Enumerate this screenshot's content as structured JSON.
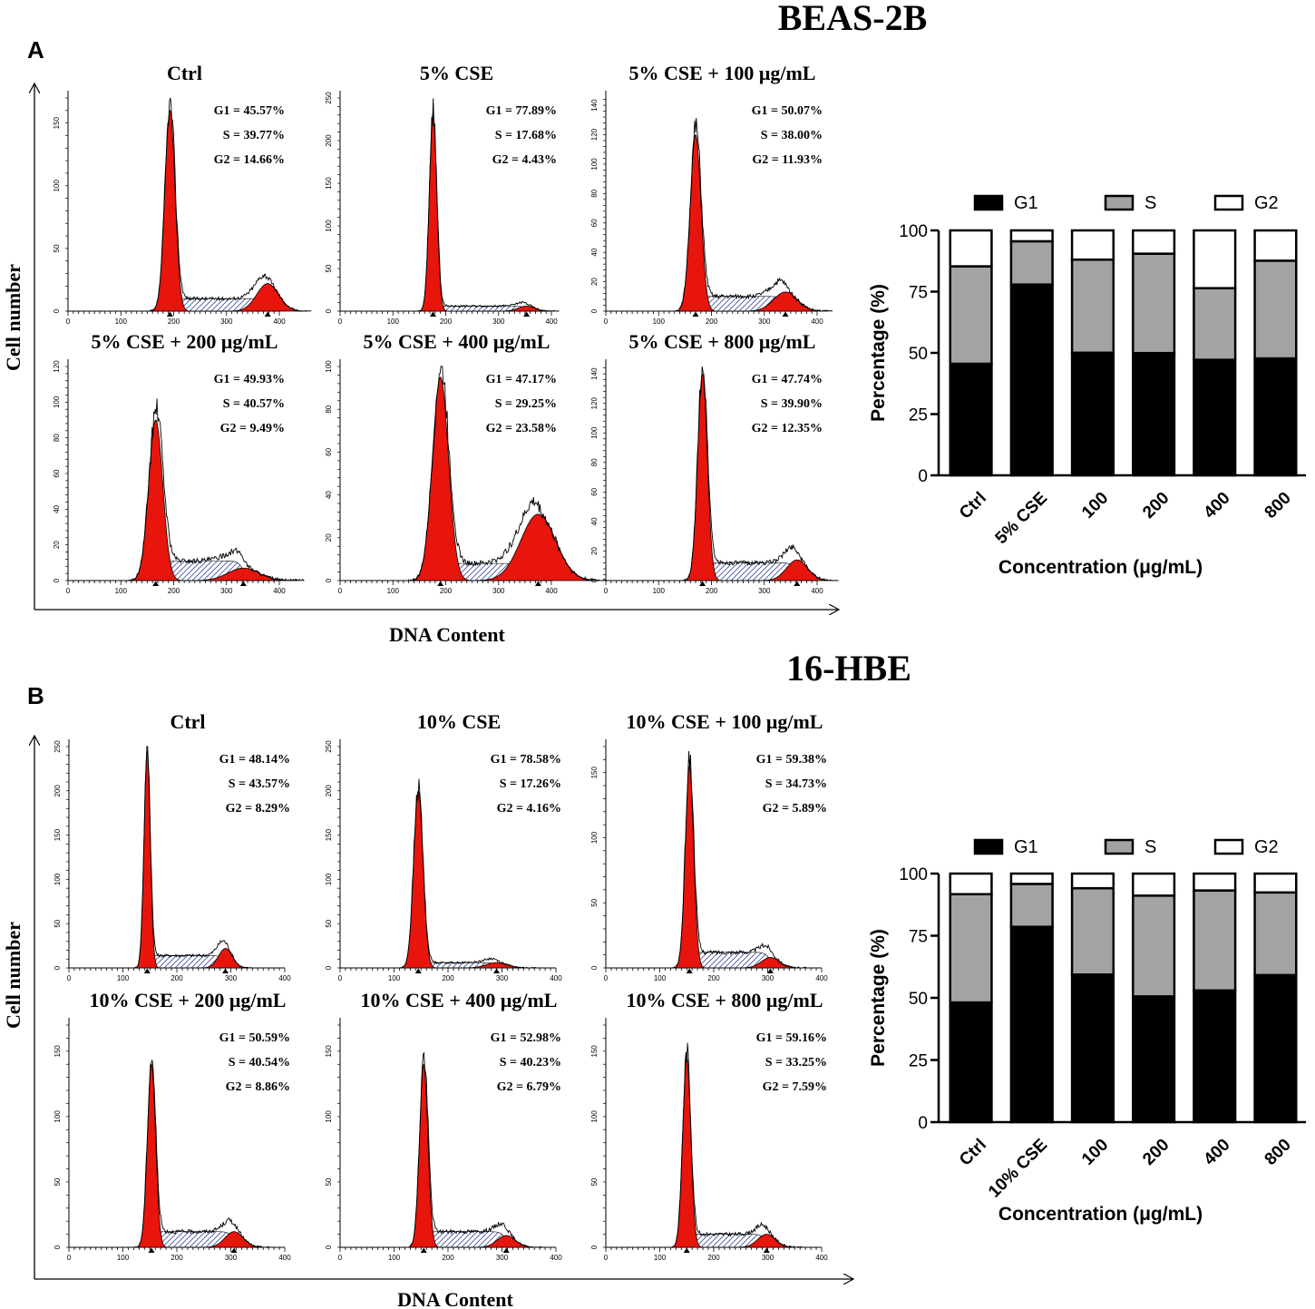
{
  "colors": {
    "peak_fill": "#e8150c",
    "g1": "#000000",
    "s": "#a3a3a6",
    "g2": "#ffffff",
    "axis": "#000000"
  },
  "chart_data": [
    {
      "id": "A",
      "panel_letter": "A",
      "title": "BEAS-2B",
      "histograms": {
        "type": "histogram",
        "ylabel": "Cell number",
        "xlabel": "DNA Content",
        "panels": [
          {
            "title": "Ctrl",
            "g1_label": "G1 = 45.57%",
            "s_label": "S = 39.77%",
            "g2_label": "G2 = 14.66%",
            "xlim": [
              0,
              400
            ],
            "xticks": [
              0,
              100,
              200,
              300,
              400
            ],
            "ylim": [
              0,
              170
            ],
            "yticks": [
              0,
              50,
              100,
              150
            ],
            "g1_peak": 193,
            "g2_peak": 378,
            "g1_height": 160,
            "g2_height": 22,
            "cv": 5,
            "plateau": 10
          },
          {
            "title": "5% CSE",
            "g1_label": "G1 = 77.89%",
            "s_label": "S = 17.68%",
            "g2_label": "G2 = 4.43%",
            "xlim": [
              0,
              400
            ],
            "xticks": [
              0,
              100,
              200,
              300,
              400
            ],
            "ylim": [
              0,
              250
            ],
            "yticks": [
              0,
              50,
              100,
              150,
              200,
              250
            ],
            "g1_peak": 176,
            "g2_peak": 353,
            "g1_height": 232,
            "g2_height": 6,
            "cv": 4,
            "plateau": 6
          },
          {
            "title": "5% CSE + 100 μg/mL",
            "g1_label": "G1 = 50.07%",
            "s_label": "S = 38.00%",
            "g2_label": "G2 = 11.93%",
            "xlim": [
              0,
              400
            ],
            "xticks": [
              0,
              100,
              200,
              300,
              400
            ],
            "ylim": [
              0,
              145
            ],
            "yticks": [
              0,
              20,
              40,
              60,
              80,
              100,
              120,
              140
            ],
            "g1_peak": 170,
            "g2_peak": 340,
            "g1_height": 120,
            "g2_height": 13,
            "cv": 6,
            "plateau": 10
          },
          {
            "title": "5% CSE + 200 μg/mL",
            "g1_label": "G1 = 49.93%",
            "s_label": "S = 40.57%",
            "g2_label": "G2 = 9.49%",
            "xlim": [
              0,
              400
            ],
            "xticks": [
              0,
              100,
              200,
              300,
              400
            ],
            "ylim": [
              0,
              120
            ],
            "yticks": [
              0,
              20,
              40,
              60,
              80,
              100,
              120
            ],
            "g1_peak": 166,
            "g2_peak": 332,
            "g1_height": 90,
            "g2_height": 7,
            "cv": 8,
            "plateau": 11
          },
          {
            "title": "5% CSE + 400 μg/mL",
            "g1_label": "G1 = 47.17%",
            "s_label": "S = 29.25%",
            "g2_label": "G2 = 23.58%",
            "xlim": [
              0,
              400
            ],
            "xticks": [
              0,
              100,
              200,
              300,
              400
            ],
            "ylim": [
              0,
              100
            ],
            "yticks": [
              0,
              20,
              40,
              60,
              80,
              100
            ],
            "g1_peak": 190,
            "g2_peak": 375,
            "g1_height": 95,
            "g2_height": 31,
            "cv": 8,
            "plateau": 8
          },
          {
            "title": "5% CSE + 800 μg/mL",
            "g1_label": "G1 = 47.74%",
            "s_label": "S = 39.90%",
            "g2_label": "G2 = 12.35%",
            "xlim": [
              0,
              400
            ],
            "xticks": [
              0,
              100,
              200,
              300,
              400
            ],
            "ylim": [
              0,
              145
            ],
            "yticks": [
              0,
              20,
              40,
              60,
              80,
              100,
              120,
              140
            ],
            "g1_peak": 183,
            "g2_peak": 362,
            "g1_height": 140,
            "g2_height": 14,
            "cv": 5,
            "plateau": 12
          }
        ]
      },
      "bar": {
        "type": "bar",
        "stacked": true,
        "categories": [
          "Ctrl",
          "5% CSE",
          "100",
          "200",
          "400",
          "800"
        ],
        "series": [
          {
            "name": "G1",
            "values": [
              45.57,
              77.89,
              50.07,
              49.93,
              47.17,
              47.74
            ]
          },
          {
            "name": "S",
            "values": [
              39.77,
              17.68,
              38.0,
              40.57,
              29.25,
              39.9
            ]
          },
          {
            "name": "G2",
            "values": [
              14.66,
              4.43,
              11.93,
              9.49,
              23.58,
              12.35
            ]
          }
        ],
        "ylabel": "Percentage (%)",
        "xlabel": "Concentration (μg/mL)",
        "ylim": [
          0,
          100
        ],
        "yticks": [
          0,
          25,
          50,
          75,
          100
        ],
        "legend": "top"
      }
    },
    {
      "id": "B",
      "panel_letter": "B",
      "title": "16-HBE",
      "histograms": {
        "type": "histogram",
        "ylabel": "Cell number",
        "xlabel": "DNA Content",
        "panels": [
          {
            "title": "Ctrl",
            "g1_label": "G1 = 48.14%",
            "s_label": "S = 43.57%",
            "g2_label": "G2 = 8.29%",
            "xlim": [
              0,
              400
            ],
            "xticks": [
              0,
              100,
              200,
              300,
              400
            ],
            "ylim": [
              0,
              250
            ],
            "yticks": [
              0,
              50,
              100,
              150,
              200,
              250
            ],
            "g1_peak": 145,
            "g2_peak": 290,
            "g1_height": 245,
            "g2_height": 22,
            "cv": 4,
            "plateau": 14
          },
          {
            "title": "10% CSE",
            "g1_label": "G1 = 78.58%",
            "s_label": "S = 17.26%",
            "g2_label": "G2 = 4.16%",
            "xlim": [
              0,
              400
            ],
            "xticks": [
              0,
              100,
              200,
              300,
              400
            ],
            "ylim": [
              0,
              250
            ],
            "yticks": [
              0,
              50,
              100,
              150,
              200,
              250
            ],
            "g1_peak": 145,
            "g2_peak": 290,
            "g1_height": 200,
            "g2_height": 6,
            "cv": 6,
            "plateau": 6
          },
          {
            "title": "10% CSE + 100 μg/mL",
            "g1_label": "G1 = 59.38%",
            "s_label": "S = 34.73%",
            "g2_label": "G2 = 5.89%",
            "xlim": [
              0,
              400
            ],
            "xticks": [
              0,
              100,
              200,
              300,
              400
            ],
            "ylim": [
              0,
              170
            ],
            "yticks": [
              0,
              50,
              100,
              150
            ],
            "g1_peak": 155,
            "g2_peak": 305,
            "g1_height": 155,
            "g2_height": 8,
            "cv": 5,
            "plateau": 12
          },
          {
            "title": "10% CSE + 200 μg/mL",
            "g1_label": "G1 = 50.59%",
            "s_label": "S = 40.54%",
            "g2_label": "G2 = 8.86%",
            "xlim": [
              0,
              400
            ],
            "xticks": [
              0,
              100,
              200,
              300,
              400
            ],
            "ylim": [
              0,
              170
            ],
            "yticks": [
              0,
              50,
              100,
              150
            ],
            "g1_peak": 153,
            "g2_peak": 306,
            "g1_height": 140,
            "g2_height": 12,
            "cv": 5,
            "plateau": 12
          },
          {
            "title": "10% CSE + 400 μg/mL",
            "g1_label": "G1 = 52.98%",
            "s_label": "S = 40.23%",
            "g2_label": "G2 = 6.79%",
            "xlim": [
              0,
              400
            ],
            "xticks": [
              0,
              100,
              200,
              300,
              400
            ],
            "ylim": [
              0,
              170
            ],
            "yticks": [
              0,
              50,
              100,
              150
            ],
            "g1_peak": 155,
            "g2_peak": 308,
            "g1_height": 140,
            "g2_height": 9,
            "cv": 5,
            "plateau": 12
          },
          {
            "title": "10% CSE + 800 μg/mL",
            "g1_label": "G1 = 59.16%",
            "s_label": "S = 33.25%",
            "g2_label": "G2 = 7.59%",
            "xlim": [
              0,
              400
            ],
            "xticks": [
              0,
              100,
              200,
              300,
              400
            ],
            "ylim": [
              0,
              170
            ],
            "yticks": [
              0,
              50,
              100,
              150
            ],
            "g1_peak": 150,
            "g2_peak": 298,
            "g1_height": 145,
            "g2_height": 10,
            "cv": 5,
            "plateau": 10
          }
        ]
      },
      "bar": {
        "type": "bar",
        "stacked": true,
        "categories": [
          "Ctrl",
          "10% CSE",
          "100",
          "200",
          "400",
          "800"
        ],
        "series": [
          {
            "name": "G1",
            "values": [
              48.14,
              78.58,
              59.38,
              50.59,
              52.98,
              59.16
            ]
          },
          {
            "name": "S",
            "values": [
              43.57,
              17.26,
              34.73,
              40.54,
              40.23,
              33.25
            ]
          },
          {
            "name": "G2",
            "values": [
              8.29,
              4.16,
              5.89,
              8.86,
              6.79,
              7.59
            ]
          }
        ],
        "ylabel": "Percentage (%)",
        "xlabel": "Concentration (μg/mL)",
        "ylim": [
          0,
          100
        ],
        "yticks": [
          0,
          25,
          50,
          75,
          100
        ],
        "legend": "top"
      }
    }
  ]
}
